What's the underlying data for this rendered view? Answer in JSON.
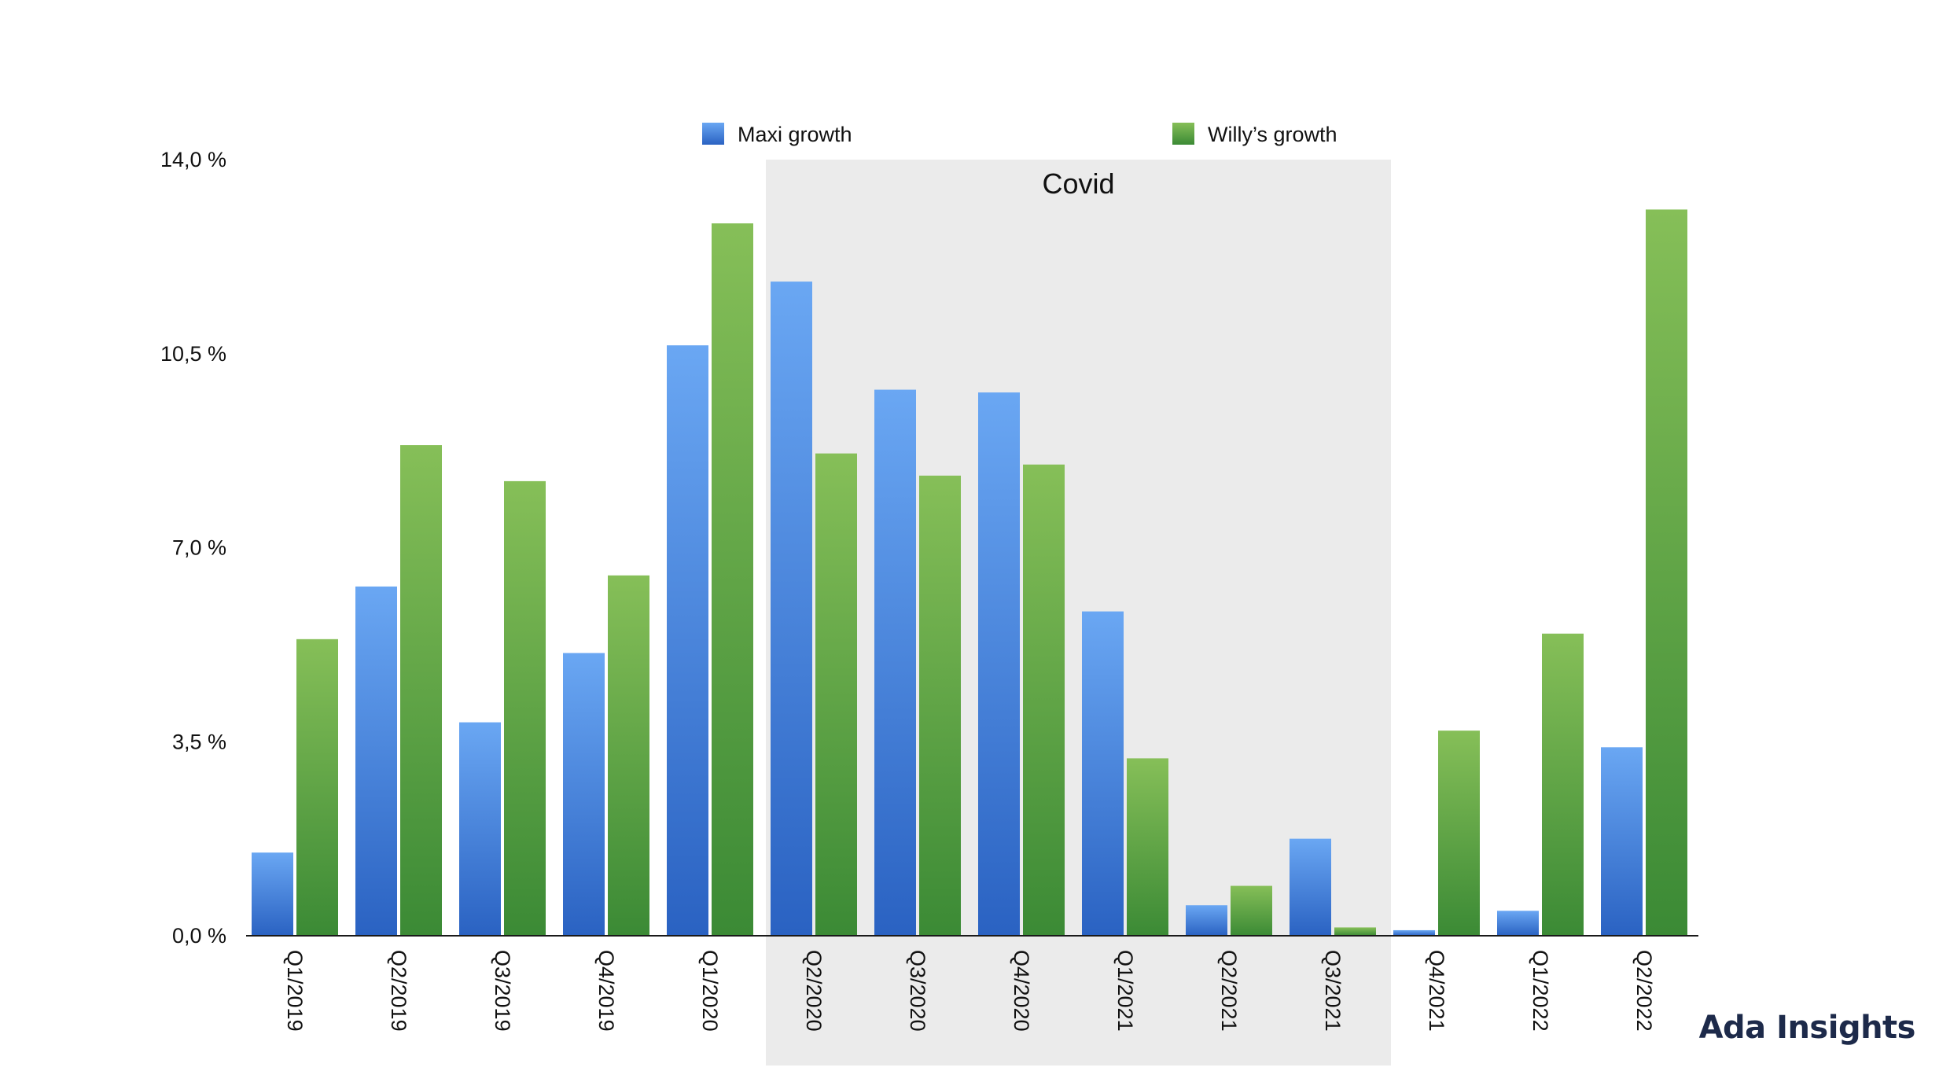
{
  "chart_data": {
    "type": "bar",
    "title": "",
    "xlabel": "",
    "ylabel": "",
    "ylim": [
      0,
      14
    ],
    "y_ticks": [
      "0,0 %",
      "3,5 %",
      "7,0 %",
      "10,5 %",
      "14,0 %"
    ],
    "y_tick_values": [
      0,
      3.5,
      7,
      10.5,
      14
    ],
    "grid": false,
    "legend_position": "top-center",
    "categories": [
      "Q1/2019",
      "Q2/2019",
      "Q3/2019",
      "Q4/2019",
      "Q1/2020",
      "Q2/2020",
      "Q3/2020",
      "Q4/2020",
      "Q1/2021",
      "Q2/2021",
      "Q3/2021",
      "Q4/2021",
      "Q1/2022",
      "Q2/2022"
    ],
    "series": [
      {
        "name": "Maxi growth",
        "color_top": "#6aa7f3",
        "color_bottom": "#2a62c2",
        "values": [
          1.5,
          6.3,
          3.85,
          5.1,
          10.65,
          11.8,
          9.85,
          9.8,
          5.85,
          0.55,
          1.75,
          0.1,
          0.45,
          3.4
        ]
      },
      {
        "name": "Willy’s growth",
        "color_top": "#86bf58",
        "color_bottom": "#3b8a35",
        "values": [
          5.35,
          8.85,
          8.2,
          6.5,
          12.85,
          8.7,
          8.3,
          8.5,
          3.2,
          0.9,
          0.15,
          3.7,
          5.45,
          13.1
        ]
      }
    ],
    "annotations": [
      {
        "type": "shaded-band",
        "label": "Covid",
        "from_category": "Q2/2020",
        "to_category": "Q3/2021",
        "color": "#ebebeb"
      }
    ]
  },
  "brand": {
    "text": "Ada Insights",
    "color": "#1d2a4a"
  }
}
